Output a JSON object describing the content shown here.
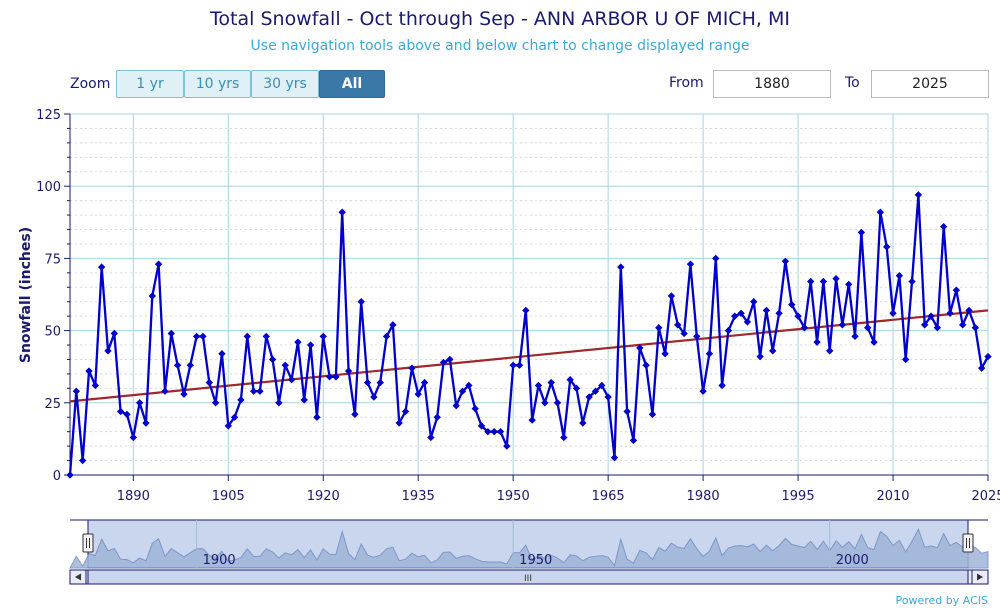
{
  "header": {
    "title": "Total Snowfall - Oct through Sep - ANN ARBOR U OF MICH, MI",
    "subtitle": "Use navigation tools above and below chart to change displayed range"
  },
  "zoom": {
    "label": "Zoom",
    "buttons": [
      "1 yr",
      "10 yrs",
      "30 yrs",
      "All"
    ],
    "active": 3
  },
  "range": {
    "from_label": "From",
    "from_value": "1880",
    "to_label": "To",
    "to_value": "2025"
  },
  "navigator": {
    "tick_labels": [
      "1900",
      "1950",
      "2000"
    ],
    "scroll_grip": "III"
  },
  "credit": "Powered by ACIS",
  "colors": {
    "series": "#0000cc",
    "trend": "#a0282a",
    "grid": "#a8d4e6",
    "navigator_fill": "#9fb4d8",
    "navigator_mask": "#c9d6ee"
  },
  "chart_data": {
    "type": "line",
    "title": "Total Snowfall - Oct through Sep - ANN ARBOR U OF MICH, MI",
    "ylabel": "Snowfall (inches)",
    "xlabel": "",
    "xlim": [
      1880,
      2025
    ],
    "ylim": [
      0,
      125
    ],
    "x_ticks": [
      1890,
      1905,
      1920,
      1935,
      1950,
      1965,
      1980,
      1995,
      2010,
      2025
    ],
    "y_ticks": [
      0,
      25,
      50,
      75,
      100,
      125
    ],
    "grid": true,
    "x_start": 1880,
    "series": [
      {
        "values": [
          0,
          29,
          5,
          36,
          31,
          72,
          43,
          49,
          22,
          21,
          13,
          25,
          18,
          62,
          73,
          29,
          49,
          38,
          28,
          38,
          48,
          48,
          32,
          25,
          42,
          17,
          20,
          26,
          48,
          29,
          29,
          48,
          40,
          25,
          38,
          33,
          46,
          26,
          45,
          20,
          48,
          34,
          34,
          91,
          36,
          21,
          60,
          32,
          27,
          32,
          48,
          52,
          18,
          22,
          37,
          28,
          32,
          13,
          20,
          39,
          40,
          24,
          29,
          31,
          23,
          17,
          15,
          15,
          15,
          10,
          38,
          38,
          57,
          19,
          31,
          25,
          32,
          25,
          13,
          33,
          30,
          18,
          27,
          29,
          31,
          27,
          6,
          72,
          22,
          12,
          44,
          38,
          21,
          51,
          42,
          62,
          52,
          49,
          73,
          48,
          29,
          42,
          75,
          31,
          50,
          55,
          56,
          53,
          60,
          41,
          57,
          43,
          56,
          74,
          59,
          55,
          51,
          67,
          46,
          67,
          43,
          68,
          52,
          66,
          48,
          84,
          51,
          46,
          91,
          79,
          56,
          69,
          40,
          67,
          97,
          52,
          55,
          51,
          86,
          56,
          64,
          52,
          57,
          51,
          37,
          41
        ]
      }
    ],
    "trend": {
      "x": [
        1880,
        2025
      ],
      "y": [
        25.5,
        57
      ]
    }
  }
}
